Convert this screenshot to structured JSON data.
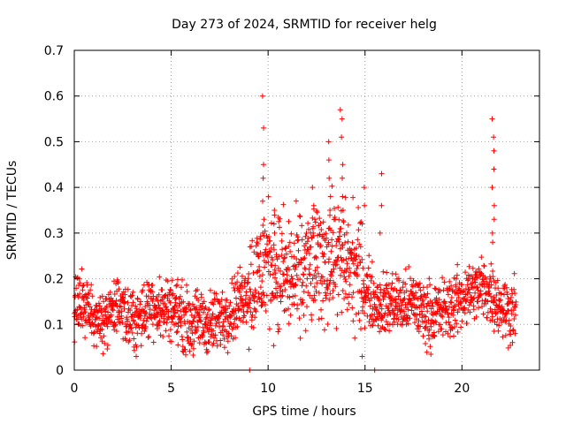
{
  "chart_data": {
    "type": "scatter",
    "title": "Day 273 of 2024, SRMTID for receiver helg",
    "xlabel": "GPS time / hours",
    "ylabel": "SRMTID / TECUs",
    "xlim": [
      0,
      24
    ],
    "ylim": [
      0,
      0.7
    ],
    "xticks": [
      0,
      5,
      10,
      15,
      20
    ],
    "yticks": [
      0,
      0.1,
      0.2,
      0.3,
      0.4,
      0.5,
      0.6,
      0.7
    ],
    "grid": true,
    "marker": "+",
    "series_color": "#ff0000",
    "baseline_trend": [
      {
        "t": 0.0,
        "v": 0.14
      },
      {
        "t": 0.5,
        "v": 0.15
      },
      {
        "t": 1.0,
        "v": 0.12
      },
      {
        "t": 1.5,
        "v": 0.11
      },
      {
        "t": 2.0,
        "v": 0.14
      },
      {
        "t": 2.5,
        "v": 0.12
      },
      {
        "t": 3.0,
        "v": 0.11
      },
      {
        "t": 3.5,
        "v": 0.12
      },
      {
        "t": 4.0,
        "v": 0.15
      },
      {
        "t": 4.5,
        "v": 0.13
      },
      {
        "t": 5.0,
        "v": 0.14
      },
      {
        "t": 5.5,
        "v": 0.12
      },
      {
        "t": 6.0,
        "v": 0.1
      },
      {
        "t": 6.5,
        "v": 0.11
      },
      {
        "t": 7.0,
        "v": 0.1
      },
      {
        "t": 7.5,
        "v": 0.11
      },
      {
        "t": 8.0,
        "v": 0.13
      },
      {
        "t": 8.5,
        "v": 0.15
      },
      {
        "t": 9.0,
        "v": 0.18
      },
      {
        "t": 9.5,
        "v": 0.2
      },
      {
        "t": 10.0,
        "v": 0.24
      },
      {
        "t": 10.5,
        "v": 0.22
      },
      {
        "t": 11.0,
        "v": 0.2
      },
      {
        "t": 11.5,
        "v": 0.2
      },
      {
        "t": 12.0,
        "v": 0.22
      },
      {
        "t": 12.5,
        "v": 0.23
      },
      {
        "t": 13.0,
        "v": 0.24
      },
      {
        "t": 13.5,
        "v": 0.25
      },
      {
        "t": 14.0,
        "v": 0.23
      },
      {
        "t": 14.5,
        "v": 0.22
      },
      {
        "t": 15.0,
        "v": 0.18
      },
      {
        "t": 15.5,
        "v": 0.15
      },
      {
        "t": 16.0,
        "v": 0.14
      },
      {
        "t": 16.5,
        "v": 0.15
      },
      {
        "t": 17.0,
        "v": 0.14
      },
      {
        "t": 17.5,
        "v": 0.15
      },
      {
        "t": 18.0,
        "v": 0.13
      },
      {
        "t": 18.5,
        "v": 0.12
      },
      {
        "t": 19.0,
        "v": 0.13
      },
      {
        "t": 19.5,
        "v": 0.14
      },
      {
        "t": 20.0,
        "v": 0.16
      },
      {
        "t": 20.5,
        "v": 0.17
      },
      {
        "t": 21.0,
        "v": 0.18
      },
      {
        "t": 21.5,
        "v": 0.17
      },
      {
        "t": 22.0,
        "v": 0.14
      },
      {
        "t": 22.5,
        "v": 0.13
      },
      {
        "t": 22.8,
        "v": 0.13
      }
    ],
    "spikes": [
      {
        "t": 9.75,
        "values": [
          0.6,
          0.53,
          0.45,
          0.42,
          0.37,
          0.33,
          0.3
        ]
      },
      {
        "t": 13.8,
        "values": [
          0.57,
          0.55,
          0.51,
          0.45,
          0.42,
          0.38,
          0.35
        ]
      },
      {
        "t": 13.15,
        "values": [
          0.5,
          0.46,
          0.42,
          0.38,
          0.35,
          0.31
        ]
      },
      {
        "t": 21.6,
        "values": [
          0.55,
          0.51,
          0.48,
          0.44,
          0.4,
          0.36,
          0.33,
          0.3,
          0.28
        ]
      },
      {
        "t": 15.85,
        "values": [
          0.43,
          0.36,
          0.3
        ]
      },
      {
        "t": 12.35,
        "values": [
          0.4,
          0.36,
          0.33,
          0.3
        ]
      },
      {
        "t": 14.9,
        "values": [
          0.4,
          0.36,
          0.32
        ]
      },
      {
        "t": 10.35,
        "values": [
          0.35,
          0.32,
          0.3
        ]
      }
    ],
    "near_zero_points": [
      {
        "t": 9.05,
        "v": 0.0
      },
      {
        "t": 15.5,
        "v": 0.0
      }
    ]
  }
}
